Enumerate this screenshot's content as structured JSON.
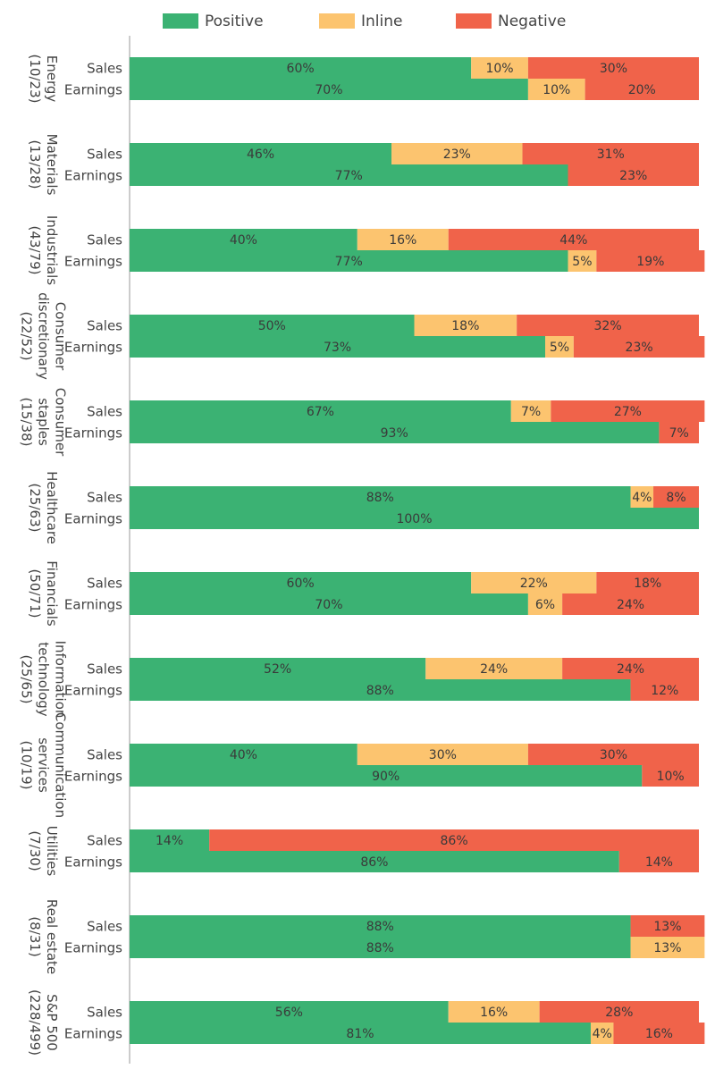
{
  "chart_data": {
    "type": "stacked-bar-horizontal",
    "legend": "top",
    "xlim": [
      0,
      100
    ],
    "groups": [
      {
        "label": [
          "Energy",
          "(10/23)"
        ]
      },
      {
        "label": [
          "Materials",
          "(13/28)"
        ]
      },
      {
        "label": [
          "Industrials",
          "(43/79)"
        ]
      },
      {
        "label": [
          "Consumer",
          "discretionary",
          "(22/52)"
        ]
      },
      {
        "label": [
          "Consumer",
          "staples",
          "(15/38)"
        ]
      },
      {
        "label": [
          "Healthcare",
          "(25/63)"
        ]
      },
      {
        "label": [
          "Financials",
          "(50/71)"
        ]
      },
      {
        "label": [
          "Information",
          "technology",
          "(25/65)"
        ]
      },
      {
        "label": [
          "Communication",
          "services",
          "(10/19)"
        ]
      },
      {
        "label": [
          "Utilities",
          "(7/30)"
        ]
      },
      {
        "label": [
          "Real estate",
          "(8/31)"
        ]
      },
      {
        "label": [
          "S&P 500",
          "(228/499)"
        ]
      }
    ],
    "categories": [
      "Sales",
      "Earnings",
      "Sales",
      "Earnings",
      "Sales",
      "Earnings",
      "Sales",
      "Earnings",
      "Sales",
      "Earnings",
      "Sales",
      "Earnings",
      "Sales",
      "Earnings",
      "Sales",
      "Earnings",
      "Sales",
      "Earnings",
      "Sales",
      "Earnings",
      "Sales",
      "Earnings",
      "Sales",
      "Earnings"
    ],
    "series": [
      {
        "name": "Positive",
        "color": "#3bb273",
        "values": [
          60,
          70,
          46,
          77,
          40,
          77,
          50,
          73,
          67,
          93,
          88,
          100,
          60,
          70,
          52,
          88,
          40,
          90,
          14,
          86,
          88,
          88,
          56,
          81
        ],
        "value_labels": [
          "60%",
          "70%",
          "46%",
          "77%",
          "40%",
          "77%",
          "50%",
          "73%",
          "67%",
          "93%",
          "88%",
          "100%",
          "60%",
          "70%",
          "52%",
          "88%",
          "40%",
          "90%",
          "14%",
          "86%",
          "88%",
          "88%",
          "56%",
          "81%"
        ]
      },
      {
        "name": "Inline",
        "color": "#fcc46f",
        "values": [
          10,
          10,
          23,
          null,
          16,
          5,
          18,
          5,
          7,
          null,
          4,
          null,
          22,
          6,
          24,
          null,
          30,
          null,
          null,
          null,
          null,
          13,
          16,
          4
        ],
        "value_labels": [
          "10%",
          "10%",
          "23%",
          null,
          "16%",
          "5%",
          "18%",
          "5%",
          "7%",
          null,
          "4%",
          null,
          "22%",
          "6%",
          "24%",
          null,
          "30%",
          null,
          null,
          null,
          null,
          "13%",
          "16%",
          "4%"
        ]
      },
      {
        "name": "Negative",
        "color": "#f0634a",
        "values": [
          30,
          20,
          31,
          23,
          44,
          19,
          32,
          23,
          27,
          7,
          8,
          null,
          18,
          24,
          24,
          12,
          30,
          10,
          86,
          14,
          13,
          null,
          28,
          16
        ],
        "value_labels": [
          "30%",
          "20%",
          "31%",
          "23%",
          "44%",
          "19%",
          "32%",
          "23%",
          "27%",
          "7%",
          "8%",
          null,
          "18%",
          "24%",
          "24%",
          "12%",
          "30%",
          "10%",
          "86%",
          "14%",
          "13%",
          null,
          "28%",
          "16%"
        ]
      }
    ]
  }
}
